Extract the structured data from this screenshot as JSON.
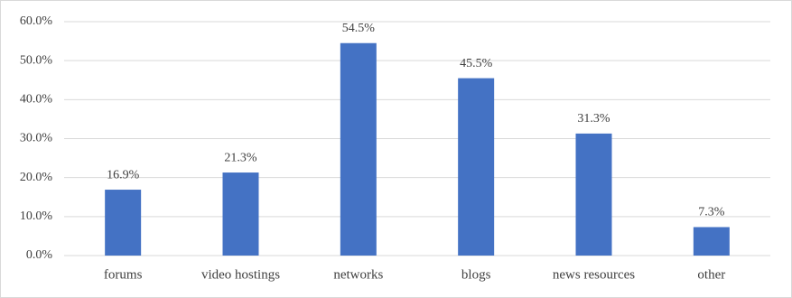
{
  "chart_data": {
    "type": "bar",
    "categories": [
      "forums",
      "video hostings",
      "networks",
      "blogs",
      "news resources",
      "other"
    ],
    "values": [
      16.9,
      21.3,
      54.5,
      45.5,
      31.3,
      7.3
    ],
    "value_labels": [
      "16.9%",
      "21.3%",
      "54.5%",
      "45.5%",
      "31.3%",
      "7.3%"
    ],
    "color": "#4472c4",
    "ylim": [
      0,
      60
    ],
    "yticks": [
      {
        "value": 0,
        "label": "0.0%"
      },
      {
        "value": 10,
        "label": "10.0%"
      },
      {
        "value": 20,
        "label": "20.0%"
      },
      {
        "value": 30,
        "label": "30.0%"
      },
      {
        "value": 40,
        "label": "40.0%"
      },
      {
        "value": 50,
        "label": "50.0%"
      },
      {
        "value": 60,
        "label": "60.0%"
      }
    ],
    "grid": true
  }
}
